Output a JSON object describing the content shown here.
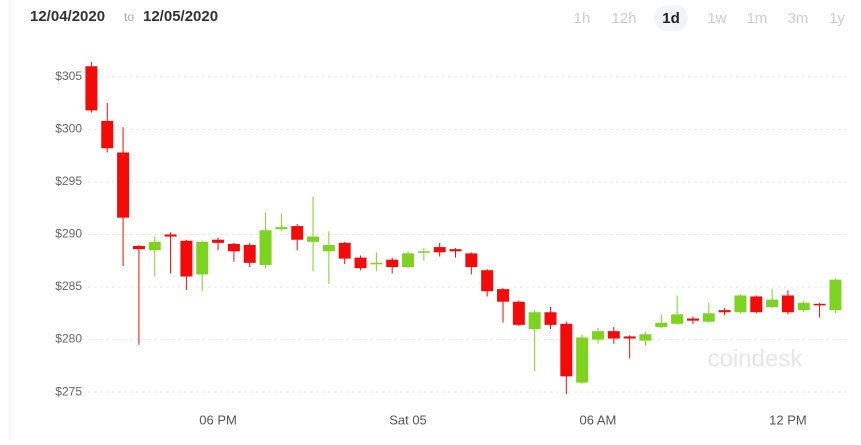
{
  "header": {
    "date_from": "12/04/2020",
    "to_word": "to",
    "date_to": "12/05/2020",
    "ranges": [
      "1h",
      "12h",
      "1d",
      "1w",
      "1m",
      "3m",
      "1y"
    ],
    "selected_range": "1d"
  },
  "watermark": "coindesk",
  "chart_data": {
    "type": "candlestick",
    "categories": [
      null,
      null,
      null,
      null,
      null,
      null,
      null,
      null,
      "06 PM",
      null,
      null,
      null,
      null,
      null,
      null,
      null,
      null,
      null,
      null,
      null,
      "Sat 05",
      null,
      null,
      null,
      null,
      null,
      null,
      null,
      null,
      null,
      null,
      null,
      "06 AM",
      null,
      null,
      null,
      null,
      null,
      null,
      null,
      null,
      null,
      null,
      null,
      "12 PM",
      null,
      null,
      null
    ],
    "open": [
      306,
      300.8,
      297.8,
      288.9,
      288.5,
      290,
      289.4,
      286.2,
      289.5,
      289.1,
      289,
      287.1,
      290.5,
      290.8,
      289.3,
      288.4,
      289.2,
      287.8,
      287.2,
      287.6,
      286.9,
      288.3,
      288.8,
      288.6,
      288.2,
      286.6,
      284.8,
      283.6,
      281,
      282.6,
      281.5,
      275.9,
      280,
      280.8,
      280.3,
      279.9,
      281.2,
      281.5,
      282,
      281.7,
      282.8,
      282.6,
      284.1,
      283.1,
      284.2,
      282.8,
      283.4,
      282.8
    ],
    "high": [
      306.4,
      302.5,
      300.2,
      289,
      289.8,
      290.2,
      289.5,
      289.4,
      289.7,
      289.2,
      289.2,
      292.1,
      292,
      291,
      293.6,
      290.3,
      289.3,
      288,
      288.3,
      287.8,
      288.4,
      288.7,
      289.2,
      288.7,
      288.3,
      286.7,
      284.9,
      283.7,
      282.8,
      283.1,
      281.7,
      280.5,
      281.1,
      281.2,
      280.4,
      280.7,
      282.4,
      284.2,
      282.2,
      283.5,
      283,
      284.3,
      284.2,
      284.8,
      284.7,
      283.7,
      283.5,
      285.8
    ],
    "low": [
      301.6,
      297.8,
      287,
      279.5,
      286,
      286.3,
      284.7,
      284.6,
      288.5,
      287.4,
      286.9,
      286.8,
      290.3,
      288.5,
      286.5,
      285.3,
      287.2,
      286.6,
      286.5,
      286.3,
      286.8,
      287.5,
      287.9,
      287.8,
      286.2,
      284.1,
      281.6,
      281.3,
      277,
      281,
      274.8,
      275.8,
      279.6,
      279.6,
      278.2,
      279.4,
      281.1,
      281.4,
      281.5,
      281.6,
      282.3,
      282.5,
      282.5,
      283,
      282.4,
      282.6,
      282.1,
      282.5
    ],
    "close": [
      301.8,
      298.2,
      291.6,
      288.6,
      289.3,
      289.8,
      286,
      289.3,
      289.2,
      288.4,
      287.3,
      290.4,
      290.7,
      289.5,
      289.8,
      289,
      287.7,
      286.8,
      287.3,
      286.9,
      288.2,
      288.4,
      288.3,
      288.4,
      286.9,
      284.6,
      283.6,
      281.4,
      282.6,
      281.4,
      276.5,
      280.2,
      280.8,
      280.1,
      280.1,
      280.5,
      281.6,
      282.4,
      281.8,
      282.5,
      282.6,
      284.2,
      282.6,
      283.8,
      282.6,
      283.5,
      283.3,
      285.7
    ],
    "up_color": "#7ed321",
    "down_color": "#f50a0a",
    "ylim": [
      273.3,
      308.5
    ],
    "yticks": [
      {
        "value": 275,
        "label": "$275"
      },
      {
        "value": 280,
        "label": "$280"
      },
      {
        "value": 285,
        "label": "$285"
      },
      {
        "value": 290,
        "label": "$290"
      },
      {
        "value": 295,
        "label": "$295"
      },
      {
        "value": 300,
        "label": "$300"
      },
      {
        "value": 305,
        "label": "$305"
      }
    ],
    "grid": true
  }
}
